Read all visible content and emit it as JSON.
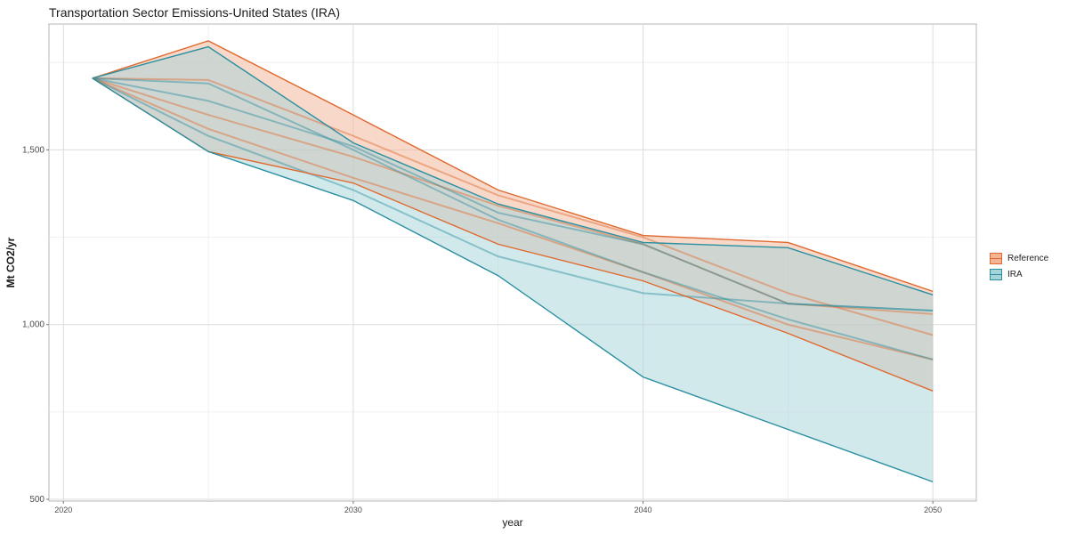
{
  "chart_data": {
    "type": "area",
    "title": "Transportation Sector Emissions-United States (IRA)",
    "xlabel": "year",
    "ylabel": "Mt CO2/yr",
    "x_ticks": [
      2020,
      2030,
      2040,
      2050
    ],
    "y_ticks": [
      500,
      1000,
      1500
    ],
    "y_tick_labels": [
      "500",
      "1,000",
      "1,500"
    ],
    "xlim": [
      2019.5,
      2051.5
    ],
    "ylim": [
      495,
      1860
    ],
    "grid": true,
    "legend_position": "right",
    "x": [
      2021,
      2025,
      2030,
      2035,
      2040,
      2045,
      2050
    ],
    "series": [
      {
        "name": "Reference",
        "color": "#e0692f",
        "fill": "#f2b493",
        "ribbon": {
          "upper": [
            1705,
            1812,
            1600,
            1385,
            1255,
            1235,
            1095
          ],
          "lower": [
            1705,
            1495,
            1405,
            1230,
            1125,
            975,
            810
          ]
        },
        "lines": [
          [
            1705,
            1700,
            1540,
            1370,
            1250,
            1090,
            970
          ],
          [
            1705,
            1600,
            1480,
            1340,
            1230,
            1060,
            1030
          ],
          [
            1705,
            1560,
            1420,
            1290,
            1150,
            1000,
            900
          ]
        ]
      },
      {
        "name": "IRA",
        "color": "#2a8fa0",
        "fill": "#a5d4da",
        "ribbon": {
          "upper": [
            1705,
            1795,
            1520,
            1345,
            1235,
            1220,
            1085
          ],
          "lower": [
            1705,
            1495,
            1355,
            1140,
            850,
            700,
            550
          ]
        },
        "lines": [
          [
            1705,
            1640,
            1510,
            1320,
            1230,
            1060,
            1040
          ],
          [
            1705,
            1540,
            1385,
            1195,
            1090,
            1060,
            1040
          ],
          [
            1705,
            1690,
            1500,
            1300,
            1150,
            1015,
            900
          ]
        ]
      }
    ]
  }
}
